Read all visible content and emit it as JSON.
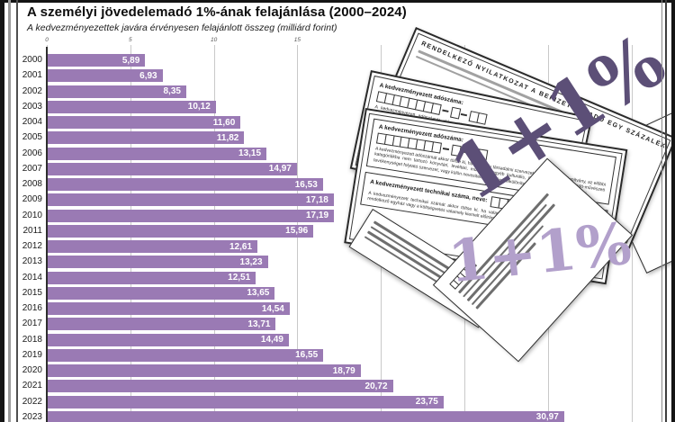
{
  "page": {
    "title": "A személyi jövedelemadó 1%-ának felajánlása (2000–2024)",
    "subtitle": "A kedvezményezettek javára érvényesen felajánlott összeg (milliárd forint)"
  },
  "chart_data": {
    "type": "bar",
    "orientation": "horizontal",
    "title": "A személyi jövedelemadó 1%-ának felajánlása (2000–2024)",
    "subtitle": "A kedvezményezettek javára érvényesen felajánlott összeg (milliárd forint)",
    "unit": "milliárd forint",
    "categories": [
      "2000",
      "2001",
      "2002",
      "2003",
      "2004",
      "2005",
      "2006",
      "2007",
      "2008",
      "2009",
      "2010",
      "2011",
      "2012",
      "2013",
      "2014",
      "2015",
      "2016",
      "2017",
      "2018",
      "2019",
      "2020",
      "2021",
      "2022",
      "2023"
    ],
    "values": [
      5.89,
      6.93,
      8.35,
      10.12,
      11.6,
      11.82,
      13.15,
      14.97,
      16.53,
      17.18,
      17.19,
      15.96,
      12.61,
      13.23,
      12.51,
      13.65,
      14.54,
      13.71,
      14.49,
      16.55,
      18.79,
      20.72,
      23.75,
      30.97
    ],
    "value_labels": [
      "5,89",
      "6,93",
      "8,35",
      "10,12",
      "11,60",
      "11,82",
      "13,15",
      "14,97",
      "16,53",
      "17,18",
      "17,19",
      "15,96",
      "12,61",
      "13,23",
      "12,51",
      "13,65",
      "14,54",
      "13,71",
      "14,49",
      "16,55",
      "18,79",
      "20,72",
      "23,75",
      "30,97"
    ],
    "xlim": [
      0,
      35
    ],
    "grid_step": 5,
    "visible_tick_labels": [
      "0",
      "5",
      "10",
      "15"
    ],
    "bar_color": "#9a7ab4",
    "grid": true,
    "legend": false
  },
  "forms": {
    "watermark_dark": "1+1%",
    "watermark_light": "1+1%",
    "sheet_title": "RENDELKEZŐ NYILATKOZAT A BEFIZETETT ADÓ EGY SZÁZALÉKÁRÓL",
    "tax_number_label": "A kedvezményezett adószáma:",
    "tax_number_note": "A kedvezményezett adószámát akkor töltse ki, ha valamely társadalmi szervezet, alapítvány, közalapítvány, az előbbi kategóriákba nem tartozó könyvtári, levéltári, múzeumi, egyéb kulturális, illetve alkotó- vagy előadó-művészeti tevékenységet folytató szervezet, vagy külön nevesített intézmény, elkülönített alap javára kíván rendelkezni.",
    "technical_number_label": "A kedvezményezett technikai száma, neve:",
    "technical_number_note": "A kedvezményezett technikai számát akkor töltse ki, ha valamely bíróság által bejegyzett, technikai számmal rendelkező egyház vagy a költségvetés valamely kiemelt előirányzata javára kíván rendelkezni."
  }
}
